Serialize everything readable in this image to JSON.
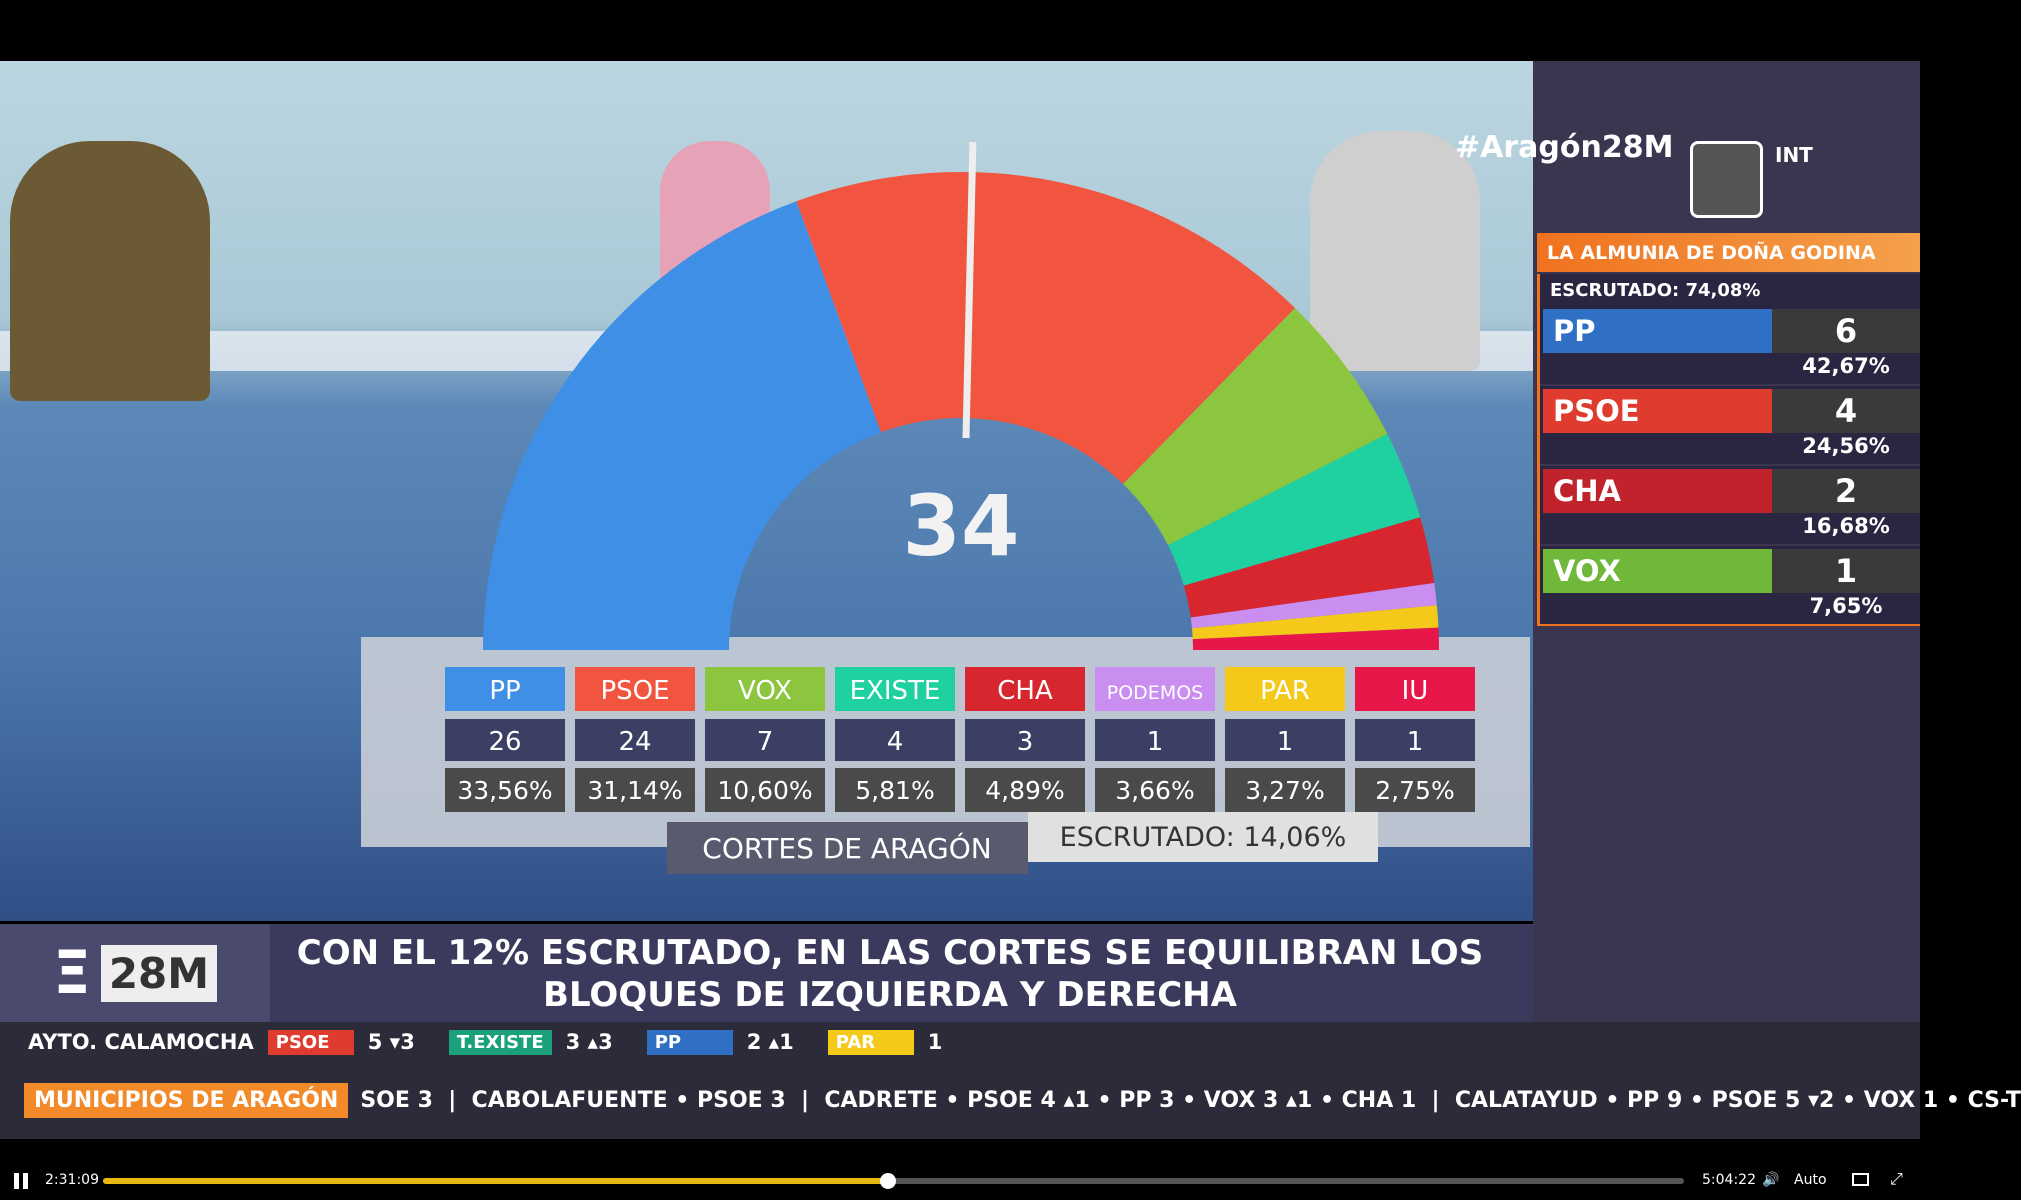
{
  "overlay": {
    "hashtag": "#Aragón28M",
    "channel": "INT"
  },
  "hemicycle": {
    "majority": "34",
    "parties": [
      {
        "name": "PP",
        "seats": 26,
        "pct": "33,56%",
        "color": "#3f8fe6"
      },
      {
        "name": "PSOE",
        "seats": 24,
        "pct": "31,14%",
        "color": "#f2553f"
      },
      {
        "name": "VOX",
        "seats": 7,
        "pct": "10,60%",
        "color": "#8cc63f"
      },
      {
        "name": "EXISTE",
        "seats": 4,
        "pct": "5,81%",
        "color": "#1fd1a0"
      },
      {
        "name": "CHA",
        "seats": 3,
        "pct": "4,89%",
        "color": "#d7262e"
      },
      {
        "name": "PODEMOS",
        "seats": 1,
        "pct": "3,66%",
        "color": "#c98ef0"
      },
      {
        "name": "PAR",
        "seats": 1,
        "pct": "3,27%",
        "color": "#f5c91a"
      },
      {
        "name": "IU",
        "seats": 1,
        "pct": "2,75%",
        "color": "#e8174a"
      }
    ],
    "title": "CORTES DE ARAGÓN",
    "scrutiny": "ESCRUTADO: 14,06%"
  },
  "sidebar": {
    "title": "LA ALMUNIA DE DOÑA GODINA",
    "scrutiny": "ESCRUTADO:  74,08%",
    "parties": [
      {
        "name": "PP",
        "seats": 6,
        "pct": "42,67%",
        "color": "#2f6fc4"
      },
      {
        "name": "PSOE",
        "seats": 4,
        "pct": "24,56%",
        "color": "#e03b2f"
      },
      {
        "name": "CHA",
        "seats": 2,
        "pct": "16,68%",
        "color": "#c0232b"
      },
      {
        "name": "VOX",
        "seats": 1,
        "pct": "7,65%",
        "color": "#6fb83a"
      }
    ]
  },
  "lower_third": {
    "logo": "28M",
    "headline": [
      "CON EL 12% ESCRUTADO, EN LAS CORTES SE EQUILIBRAN LOS",
      "BLOQUES DE IZQUIERDA Y DERECHA"
    ]
  },
  "ticker1": {
    "label": "AYTO. CALAMOCHA",
    "items": [
      {
        "party": "PSOE",
        "result": "5 ▾3",
        "color": "#e03b2f"
      },
      {
        "party": "T.EXISTE",
        "result": "3 ▴3",
        "color": "#1aa07a"
      },
      {
        "party": "PP",
        "result": "2 ▴1",
        "color": "#2f6fc4"
      },
      {
        "party": "PAR",
        "result": "1",
        "color": "#f5c91a"
      }
    ]
  },
  "ticker2": {
    "label": "MUNICIPIOS DE ARAGÓN",
    "text": "SOE 3  |  CABOLAFUENTE • PSOE 3  |  CADRETE • PSOE 4 ▴1 • PP 3 • VOX 3 ▴1 • CHA 1  |  CALATAYUD • PP 9 • PSOE 5 ▾2 • VOX 1 • CS-T"
  },
  "player": {
    "current": "2:31:09",
    "duration": "5:04:22",
    "quality": "Auto"
  }
}
